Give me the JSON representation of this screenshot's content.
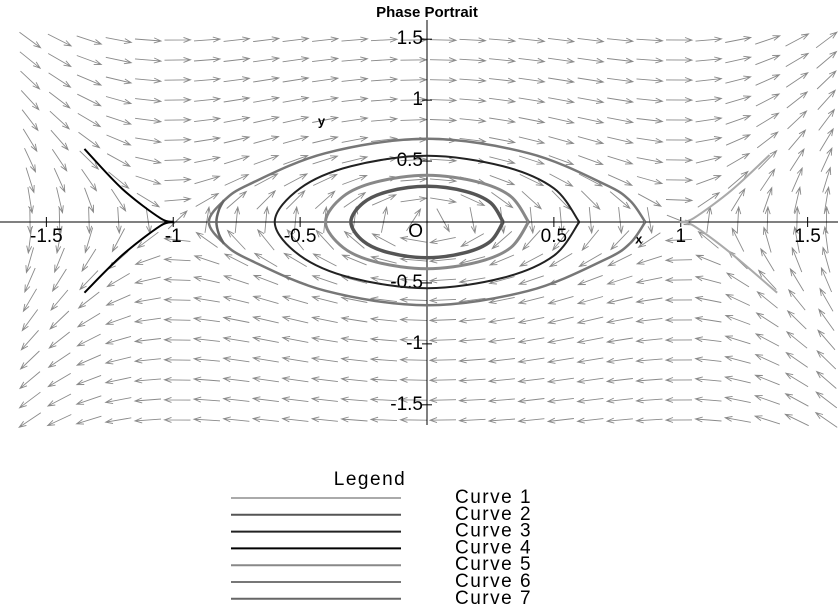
{
  "chart_data": {
    "type": "phase_portrait",
    "title": "Phase Portrait",
    "xlabel": "x",
    "ylabel": "y",
    "origin_label": "O",
    "xlim": [
      -1.6,
      1.6
    ],
    "ylim": [
      -1.6,
      1.6
    ],
    "xticks": [
      -1.5,
      -1,
      -0.5,
      0.5,
      1,
      1.5
    ],
    "yticks": [
      -1.5,
      -1,
      -0.5,
      0.5,
      1,
      1.5
    ],
    "direction_field": true,
    "legend_title": "Legend",
    "legend_position": "bottom",
    "series": [
      {
        "name": "Curve 1",
        "color": "#aaaaaa",
        "line_width": 2,
        "x": [
          1.35,
          1.2,
          1.05,
          1.0,
          1.05,
          1.2,
          1.38
        ],
        "y": [
          0.55,
          0.26,
          0.03,
          0,
          -0.03,
          -0.26,
          -0.58
        ]
      },
      {
        "name": "Curve 2",
        "color": "#555555",
        "line_width": 3.5,
        "x": [
          0.3,
          0.25,
          0.15,
          0,
          -0.15,
          -0.25,
          -0.3,
          -0.25,
          -0.15,
          0,
          0.15,
          0.25,
          0.3
        ],
        "y": [
          0,
          0.159,
          0.252,
          0.293,
          0.252,
          0.159,
          0,
          -0.159,
          -0.252,
          -0.293,
          -0.252,
          -0.159,
          0
        ]
      },
      {
        "name": "Curve 3",
        "color": "#222222",
        "line_width": 2,
        "x": [
          0.6,
          0.5,
          0.3,
          0,
          -0.3,
          -0.5,
          -0.6,
          -0.5,
          -0.3,
          0,
          0.3,
          0.5,
          0.6
        ],
        "y": [
          0,
          0.2765,
          0.4575,
          0.5433,
          0.4575,
          0.2765,
          0,
          -0.2765,
          -0.4575,
          -0.5433,
          -0.4575,
          -0.2765,
          0
        ]
      },
      {
        "name": "Curve 4",
        "color": "#000000",
        "line_width": 2,
        "x": [
          -1.35,
          -1.2,
          -1.05,
          -1.0,
          -1.05,
          -1.2,
          -1.35
        ],
        "y": [
          0.6,
          0.27,
          0.03,
          0,
          -0.03,
          -0.27,
          -0.58
        ]
      },
      {
        "name": "Curve 5",
        "color": "#888888",
        "line_width": 3,
        "x": [
          0.4,
          0.33,
          0.2,
          0,
          -0.2,
          -0.33,
          -0.4,
          -0.33,
          -0.2,
          0,
          0.2,
          0.33,
          0.4
        ],
        "y": [
          0,
          0.2103,
          0.3286,
          0.3837,
          0.3286,
          0.2103,
          0,
          -0.2103,
          -0.3286,
          -0.3837,
          -0.3286,
          -0.2103,
          0
        ]
      },
      {
        "name": "Curve 6",
        "color": "#777777",
        "line_width": 2.5,
        "x": [
          0.86,
          0.8,
          0.7,
          0.4,
          0,
          -0.4,
          -0.7,
          -0.8,
          -0.86,
          -0.8,
          -0.7,
          -0.4,
          0,
          0.4,
          0.7,
          0.8,
          0.86
        ],
        "y": [
          0,
          0.1755,
          0.3099,
          0.5646,
          0.6826,
          0.5646,
          0.3099,
          0.1755,
          0,
          -0.1755,
          -0.3099,
          -0.5646,
          -0.6826,
          -0.5646,
          -0.3099,
          -0.1755,
          0
        ]
      },
      {
        "name": "Curve 7",
        "color": "#666666",
        "line_width": 2.5,
        "x": [
          -0.8,
          -0.82,
          -0.83,
          -0.82,
          -0.8
        ],
        "y": [
          0.18,
          0.1,
          0,
          -0.1,
          -0.18
        ]
      }
    ]
  }
}
